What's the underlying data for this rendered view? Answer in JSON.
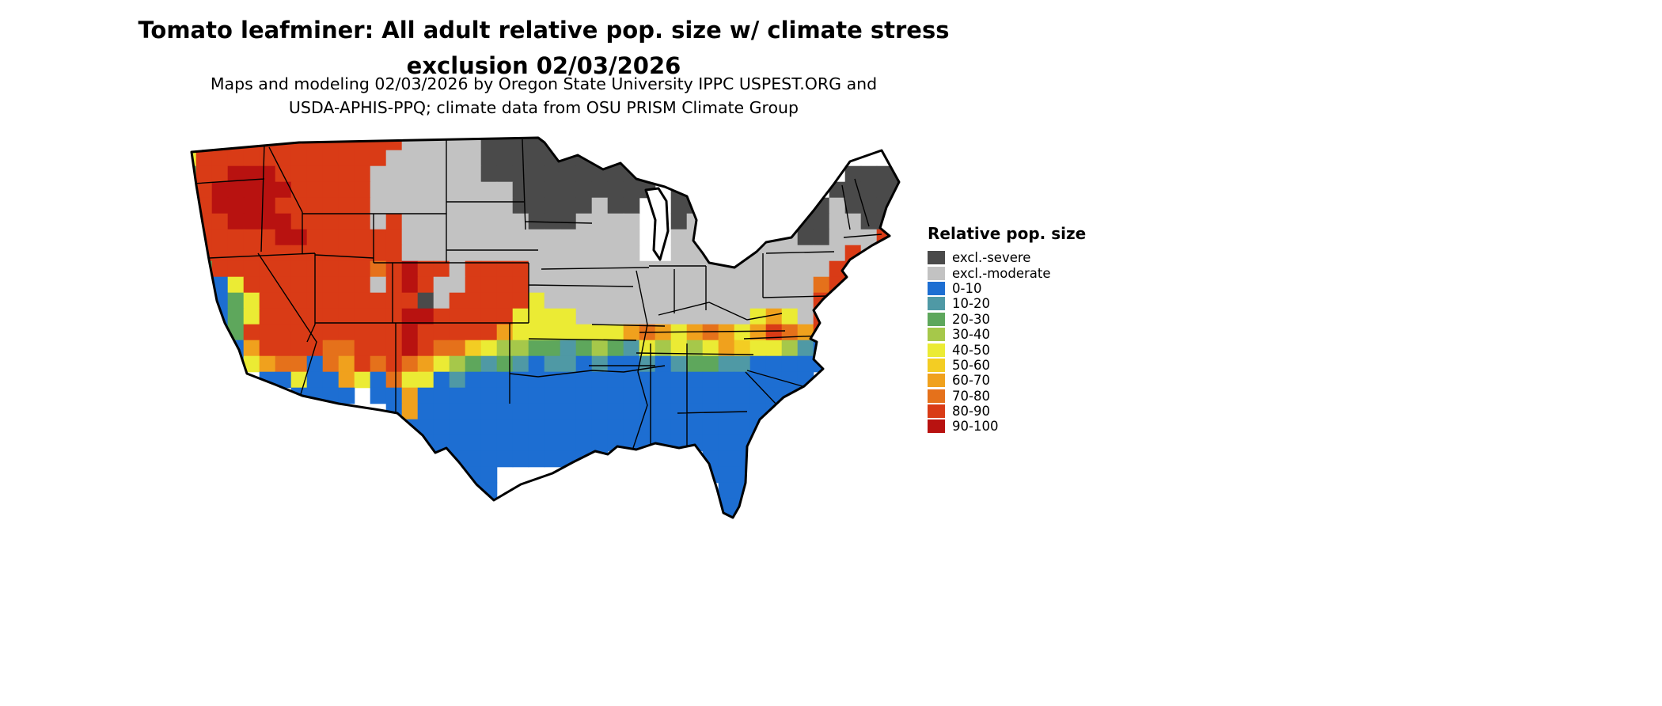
{
  "header": {
    "title_line1": "Tomato leafminer: All adult relative pop. size w/ climate stress",
    "title_line2": "exclusion 02/03/2026",
    "subtitle_line1": "Maps and modeling 02/03/2026 by Oregon State University IPPC USPEST.ORG and",
    "subtitle_line2": "USDA-APHIS-PPQ; climate data from OSU PRISM Climate Group"
  },
  "legend": {
    "title": "Relative pop. size",
    "items": [
      {
        "label": "excl.-severe",
        "key": "S",
        "color": "#4a4a4a"
      },
      {
        "label": "excl.-moderate",
        "key": "m",
        "color": "#c2c2c2"
      },
      {
        "label": "0-10",
        "key": "b",
        "color": "#1d6ed2"
      },
      {
        "label": "10-20",
        "key": "t",
        "color": "#4f99a5"
      },
      {
        "label": "20-30",
        "key": "g",
        "color": "#5ea75c"
      },
      {
        "label": "30-40",
        "key": "l",
        "color": "#a6c84a"
      },
      {
        "label": "40-50",
        "key": "y",
        "color": "#ebeb34"
      },
      {
        "label": "50-60",
        "key": "Y",
        "color": "#f3cd23"
      },
      {
        "label": "60-70",
        "key": "o",
        "color": "#f0a11d"
      },
      {
        "label": "70-80",
        "key": "O",
        "color": "#e5711b"
      },
      {
        "label": "80-90",
        "key": "r",
        "color": "#d93b16"
      },
      {
        "label": "90-100",
        "key": "R",
        "color": "#b81210"
      }
    ]
  },
  "map": {
    "name": "contiguous-united-states-relative-population-raster",
    "cell_size": 20,
    "cols": 46,
    "rows": [
      "rrrrrrrrrrrrrrmmmmmSSSSSSSSSSSSSSS............",
      "yrrrrrrrrrrrrmmmmmmSSSSSSSSSSSSSSSSSS.........",
      "grrRRRrrrrrrmmmmmmmSSSSSSSSSSSSSSS........SSSS",
      "grRRRRRrrrrrmmmmmmmmmSSSSSSSSS.SSS.......SSSSS",
      "yrRRRRrrrrrrmmmmmmmmmSSSSSmSS..SSm.....SSmSSSS",
      "grrRRRRrrrrrmrmmmmmmmmSSSmmmm..Smm.....SSmmSSS",
      "grrrrrRRrrrrrrmmmmmmmmmmmmmmm..mmm...mmSSmmmr.",
      "yrrrrrrrrrrrrrmmmmmmmmmmmmmmm..mmmmmmmmmmmrmr.",
      "bgrrrrrrrrrrOrRrrmrrrrmmmmmmmmmmmmmmmmmmmrr...",
      "bbbyrrrrrrrrmrRrmmrrrrmmmmmmmmmmmmmmmmmmOr....",
      "bbbgyrrrrrrrrrrSmrrrrrymmmmmmmmmmmmmmmmmr.....",
      "bbbgyrrrrrrrrrRRrrrrryyyymmmmmmmmmmmyoymr.....",
      "bbbgrrrrrrrrrrRrrrrroyyyyyyyoOoyoOoyorOor.....",
      "bbbborrrrOOrrrRrOOYyllggtglgtylylyoYyyltb.....",
      ".bbbyoOObOorOrOoylgtgtbttbtbbtbtggttbbbbb.....",
      ".....bbybboybOyybtbbbbbbbbbbbbbbbbbbbbbb......",
      ".......bbbb.bbobbbbbbbbbbbbbbbbbbbbbbbb.......",
      ".............bobbbbbbbbbbbbbbbbbbbbbbbb.......",
      "..............bbbbbbbbbbbbbbbbbbbbbbbb........",
      "...............bbbbbbbbbbbbbbbbbbbbbb.........",
      "................bbbbbbbbbbb......bbbb.........",
      ".................bbb.............bbb..........",
      "..................bb..............bb..........",
      "..................................bb..........",
      "..................................bb.........."
    ]
  }
}
